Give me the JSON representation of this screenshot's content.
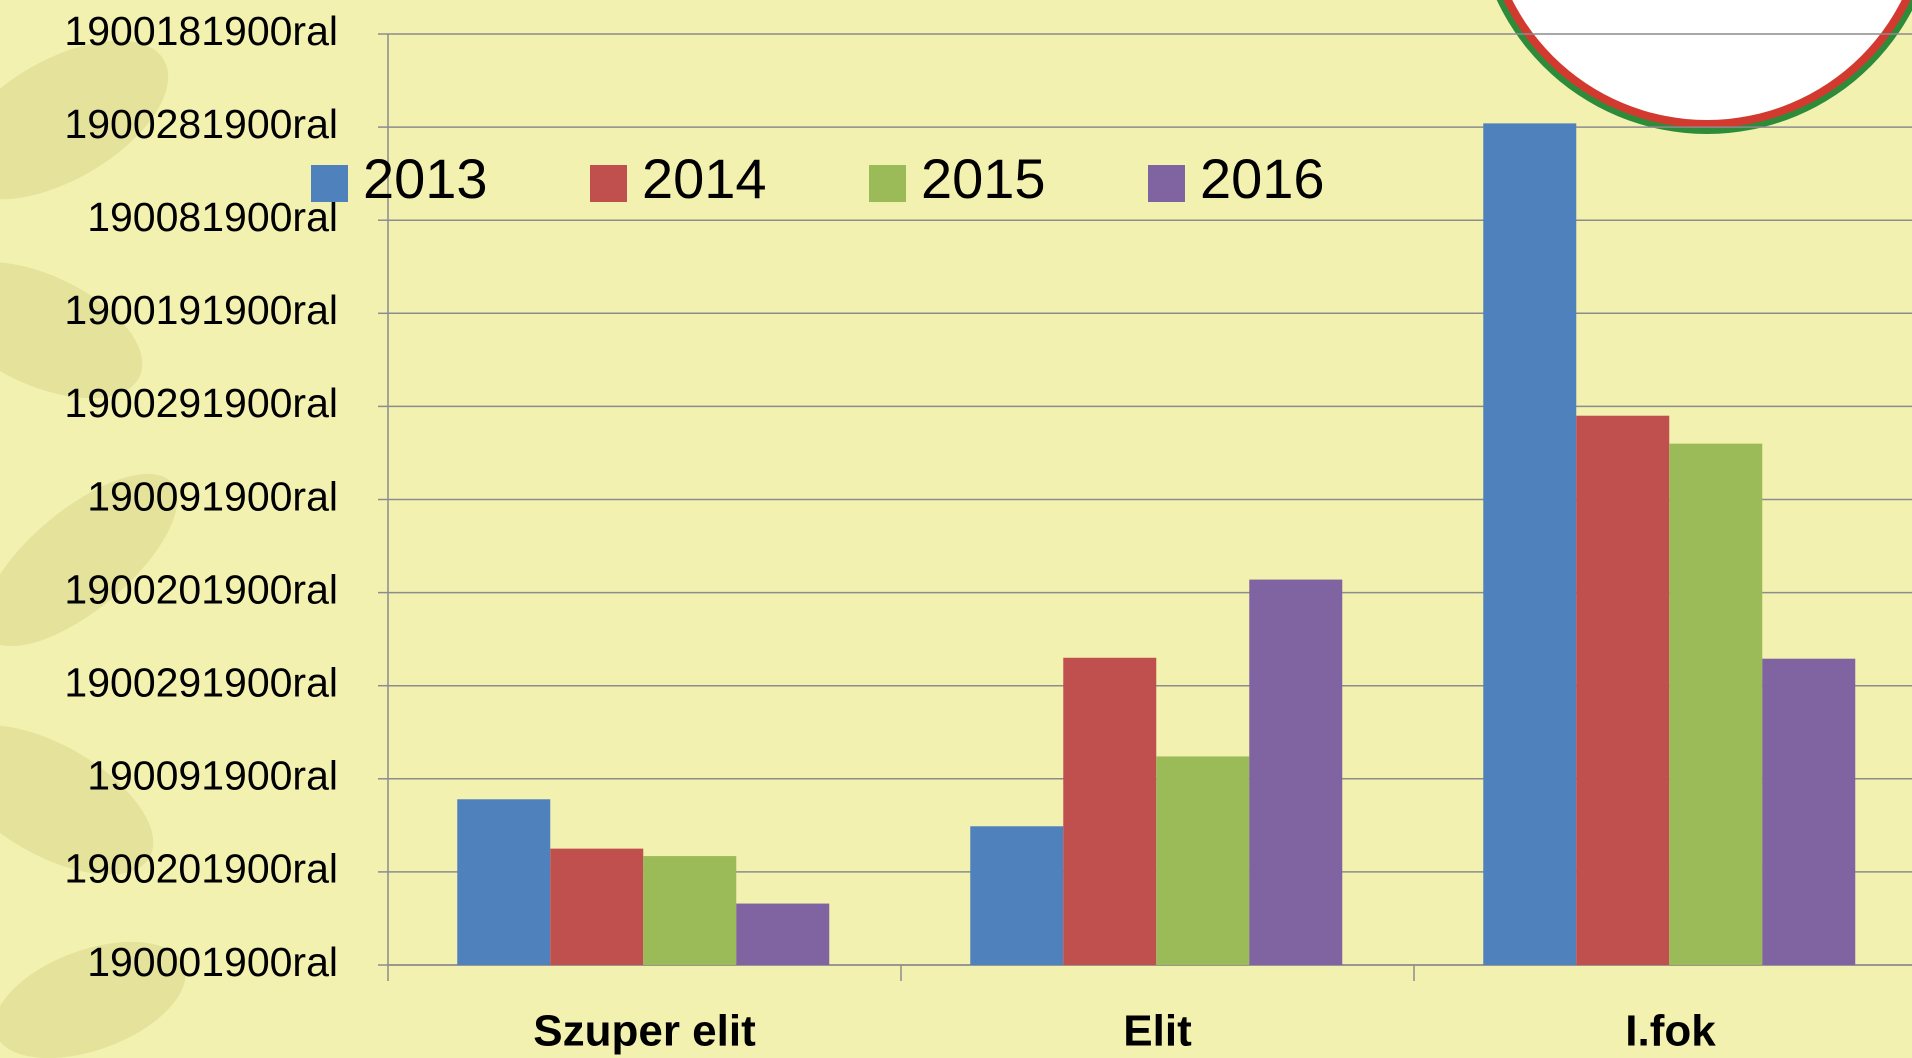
{
  "chart_data": {
    "type": "bar",
    "categories": [
      "Szuper elit",
      "Elit",
      "I.fok"
    ],
    "series": [
      {
        "name": "2013",
        "color": "#4f81bd",
        "values": [
          1.78,
          1.49,
          9.04
        ]
      },
      {
        "name": "2014",
        "color": "#c0504d",
        "values": [
          1.25,
          3.3,
          5.9
        ]
      },
      {
        "name": "2015",
        "color": "#9bbb59",
        "values": [
          1.17,
          2.24,
          5.6
        ]
      },
      {
        "name": "2016",
        "color": "#8064a2",
        "values": [
          0.66,
          4.14,
          3.29
        ]
      }
    ],
    "ylim": [
      0,
      10
    ],
    "yticks": [
      {
        "value": 0,
        "label": "190001900ral"
      },
      {
        "value": 1,
        "label": "1900201900ral"
      },
      {
        "value": 2,
        "label": "190091900ral"
      },
      {
        "value": 3,
        "label": "1900291900ral"
      },
      {
        "value": 4,
        "label": "1900201900ral"
      },
      {
        "value": 5,
        "label": "190091900ral"
      },
      {
        "value": 6,
        "label": "1900291900ral"
      },
      {
        "value": 7,
        "label": "1900191900ral"
      },
      {
        "value": 8,
        "label": "190081900ral"
      },
      {
        "value": 9,
        "label": "1900281900ral"
      },
      {
        "value": 10,
        "label": "1900181900ral"
      }
    ],
    "grid": true,
    "legend": "top"
  }
}
